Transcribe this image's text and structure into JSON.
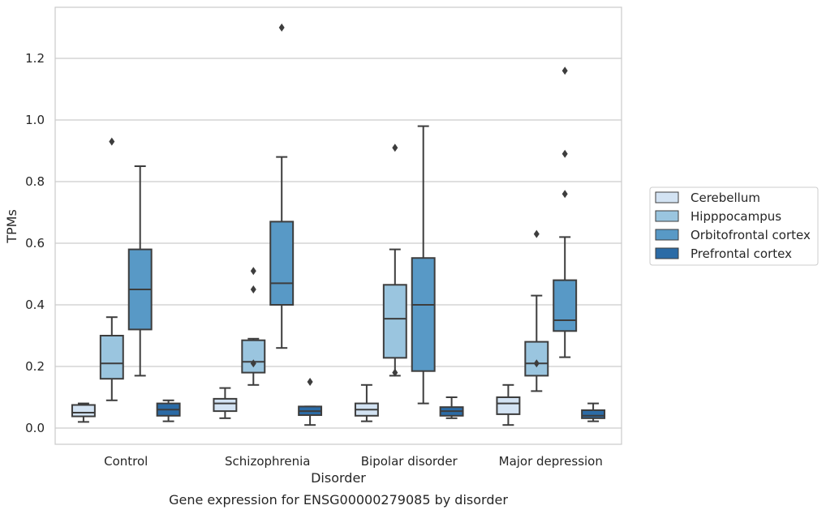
{
  "caption": "Gene expression for ENSG00000279085 by disorder",
  "chart_data": {
    "type": "box",
    "xlabel": "Disorder",
    "ylabel": "TPMs",
    "ylim": [
      -0.05,
      1.36
    ],
    "yticks": [
      "0.0",
      "0.2",
      "0.4",
      "0.6",
      "0.8",
      "1.0",
      "1.2"
    ],
    "grid": "horizontal",
    "legend_position": "right",
    "categories": [
      "Control",
      "Schizophrenia",
      "Bipolar disorder",
      "Major depression"
    ],
    "series": [
      {
        "name": "Cerebellum",
        "color": "#d3e3f3",
        "boxes": [
          {
            "whislo": 0.02,
            "q1": 0.038,
            "med": 0.05,
            "q3": 0.075,
            "whishi": 0.08,
            "fliers": []
          },
          {
            "whislo": 0.032,
            "q1": 0.055,
            "med": 0.08,
            "q3": 0.095,
            "whishi": 0.13,
            "fliers": []
          },
          {
            "whislo": 0.022,
            "q1": 0.04,
            "med": 0.06,
            "q3": 0.08,
            "whishi": 0.14,
            "fliers": []
          },
          {
            "whislo": 0.01,
            "q1": 0.045,
            "med": 0.08,
            "q3": 0.1,
            "whishi": 0.14,
            "fliers": []
          }
        ]
      },
      {
        "name": "Hipppocampus",
        "color": "#9ac5df",
        "boxes": [
          {
            "whislo": 0.09,
            "q1": 0.16,
            "med": 0.21,
            "q3": 0.3,
            "whishi": 0.36,
            "fliers": [
              0.93
            ]
          },
          {
            "whislo": 0.14,
            "q1": 0.18,
            "med": 0.215,
            "q3": 0.285,
            "whishi": 0.29,
            "fliers": [
              0.21,
              0.45,
              0.51
            ]
          },
          {
            "whislo": 0.17,
            "q1": 0.228,
            "med": 0.355,
            "q3": 0.465,
            "whishi": 0.58,
            "fliers": [
              0.18,
              0.91
            ]
          },
          {
            "whislo": 0.12,
            "q1": 0.17,
            "med": 0.21,
            "q3": 0.28,
            "whishi": 0.43,
            "fliers": [
              0.21,
              0.63
            ]
          }
        ]
      },
      {
        "name": "Orbitofrontal cortex",
        "color": "#5899c6",
        "boxes": [
          {
            "whislo": 0.17,
            "q1": 0.32,
            "med": 0.45,
            "q3": 0.58,
            "whishi": 0.85,
            "fliers": []
          },
          {
            "whislo": 0.26,
            "q1": 0.4,
            "med": 0.47,
            "q3": 0.67,
            "whishi": 0.88,
            "fliers": [
              1.3
            ]
          },
          {
            "whislo": 0.08,
            "q1": 0.185,
            "med": 0.4,
            "q3": 0.552,
            "whishi": 0.98,
            "fliers": []
          },
          {
            "whislo": 0.23,
            "q1": 0.315,
            "med": 0.35,
            "q3": 0.48,
            "whishi": 0.62,
            "fliers": [
              0.76,
              0.89,
              1.16
            ]
          }
        ]
      },
      {
        "name": "Prefrontal cortex",
        "color": "#2b6ba6",
        "boxes": [
          {
            "whislo": 0.022,
            "q1": 0.04,
            "med": 0.06,
            "q3": 0.08,
            "whishi": 0.09,
            "fliers": []
          },
          {
            "whislo": 0.01,
            "q1": 0.042,
            "med": 0.055,
            "q3": 0.07,
            "whishi": 0.07,
            "fliers": [
              0.15
            ]
          },
          {
            "whislo": 0.032,
            "q1": 0.04,
            "med": 0.055,
            "q3": 0.068,
            "whishi": 0.1,
            "fliers": []
          },
          {
            "whislo": 0.022,
            "q1": 0.032,
            "med": 0.04,
            "q3": 0.058,
            "whishi": 0.08,
            "fliers": []
          }
        ]
      }
    ]
  }
}
